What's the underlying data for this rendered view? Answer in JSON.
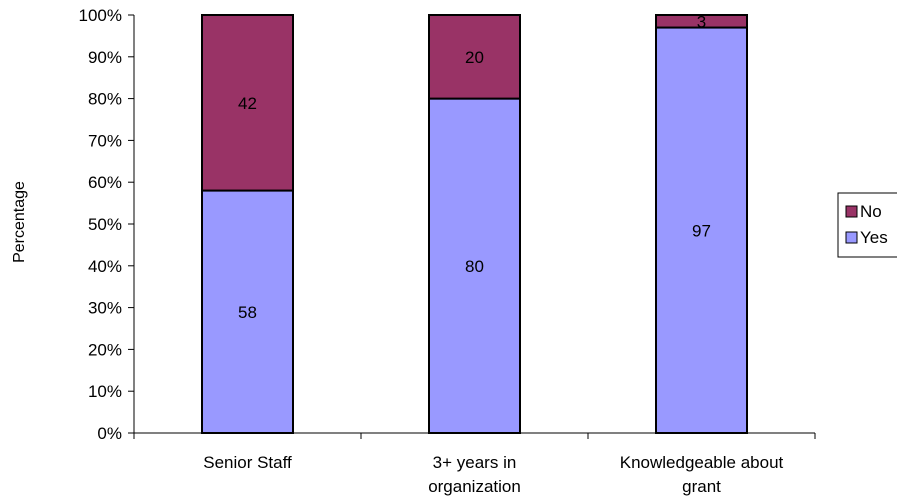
{
  "chart_data": {
    "type": "bar",
    "stacked": true,
    "percent": true,
    "categories": [
      [
        "Senior Staff"
      ],
      [
        "3+ years in",
        "organization"
      ],
      [
        "Knowledgeable about",
        "grant"
      ]
    ],
    "series": [
      {
        "name": "Yes",
        "values": [
          58,
          80,
          97
        ],
        "color": "#9999ff"
      },
      {
        "name": "No",
        "values": [
          42,
          20,
          3
        ],
        "color": "#993366"
      }
    ],
    "ylabel": "Percentage",
    "xlabel": "",
    "ylim": [
      0,
      100
    ],
    "yticks": [
      "0%",
      "10%",
      "20%",
      "30%",
      "40%",
      "50%",
      "60%",
      "70%",
      "80%",
      "90%",
      "100%"
    ],
    "grid": false,
    "legend": {
      "position": "right",
      "order": [
        "No",
        "Yes"
      ]
    },
    "data_labels": true
  }
}
